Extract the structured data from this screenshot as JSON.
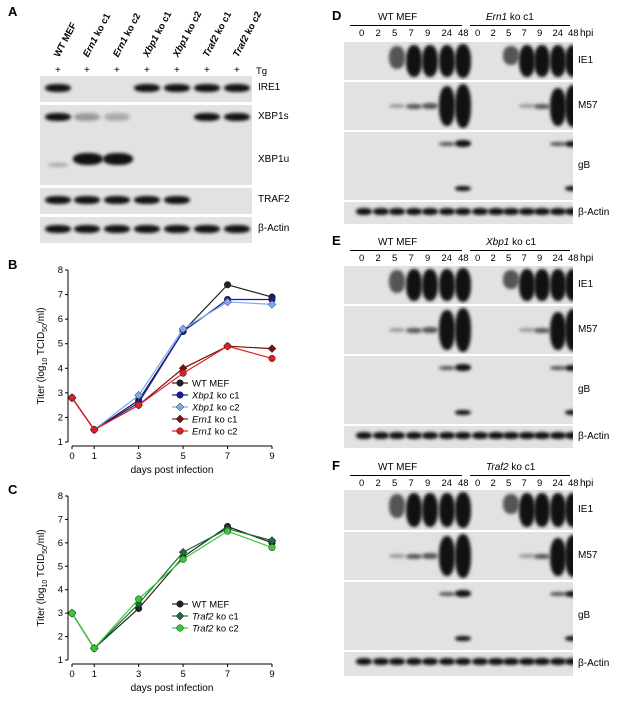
{
  "panelA": {
    "letter": "A",
    "lanes": [
      "WT MEF",
      "Ern1 ko c1",
      "Ern1 ko c2",
      "Xbp1 ko c1",
      "Xbp1 ko c2",
      "Traf2 ko c1",
      "Traf2 ko c2"
    ],
    "lanes_italic_part": [
      "",
      "Ern1",
      "Ern1",
      "Xbp1",
      "Xbp1",
      "Traf2",
      "Traf2"
    ],
    "lanes_plain_part": [
      "WT MEF",
      " ko c1",
      " ko c2",
      " ko c1",
      " ko c2",
      " ko c1",
      " ko c2"
    ],
    "treatment_symbol": "+",
    "treatment": "Tg",
    "rows": [
      "IRE1",
      "XBP1s",
      "XBP1u",
      "TRAF2",
      "β-Actin"
    ]
  },
  "panelB": {
    "letter": "B",
    "chart_data": {
      "type": "line",
      "xlabel": "days post infection",
      "ylabel": "Titer (log10 TCID50/ml)",
      "x": [
        0,
        1,
        3,
        5,
        7,
        9
      ],
      "xticks": [
        "0",
        "1",
        "3",
        "5",
        "7",
        "9"
      ],
      "yticks": [
        "1",
        "2",
        "3",
        "4",
        "5",
        "6",
        "7",
        "8"
      ],
      "ylim": [
        1,
        8
      ],
      "series": [
        {
          "name": "WT MEF",
          "italic": "",
          "plain": "WT MEF",
          "color": "#222222",
          "marker": "circle",
          "values": [
            2.8,
            1.5,
            2.7,
            5.5,
            7.4,
            6.9
          ]
        },
        {
          "name": "Xbp1 ko c1",
          "italic": "Xbp1",
          "plain": " ko c1",
          "color": "#1a1aa8",
          "marker": "circle",
          "values": [
            2.8,
            1.5,
            2.6,
            5.5,
            6.8,
            6.8
          ]
        },
        {
          "name": "Xbp1 ko c2",
          "italic": "Xbp1",
          "plain": " ko c2",
          "color": "#7aa9f0",
          "marker": "diamond",
          "values": [
            2.8,
            1.5,
            2.9,
            5.6,
            6.7,
            6.6
          ]
        },
        {
          "name": "Ern1 ko c1",
          "italic": "Ern1",
          "plain": " ko c1",
          "color": "#7a1010",
          "marker": "diamond",
          "values": [
            2.8,
            1.5,
            2.5,
            4.0,
            4.9,
            4.8
          ]
        },
        {
          "name": "Ern1 ko c2",
          "italic": "Ern1",
          "plain": " ko c2",
          "color": "#e02020",
          "marker": "circle",
          "values": [
            2.8,
            1.5,
            2.5,
            3.8,
            4.9,
            4.4
          ]
        }
      ]
    }
  },
  "panelC": {
    "letter": "C",
    "chart_data": {
      "type": "line",
      "xlabel": "days post infection",
      "ylabel": "Titer (log10 TCID50/ml)",
      "x": [
        0,
        1,
        3,
        5,
        7,
        9
      ],
      "xticks": [
        "0",
        "1",
        "3",
        "5",
        "7",
        "9"
      ],
      "yticks": [
        "1",
        "2",
        "3",
        "4",
        "5",
        "6",
        "7",
        "8"
      ],
      "ylim": [
        1,
        8
      ],
      "series": [
        {
          "name": "WT MEF",
          "italic": "",
          "plain": "WT MEF",
          "color": "#222222",
          "marker": "circle",
          "values": [
            3.0,
            1.5,
            3.2,
            5.4,
            6.7,
            6.0
          ]
        },
        {
          "name": "Traf2 ko c1",
          "italic": "Traf2",
          "plain": " ko c1",
          "color": "#1e6b3c",
          "marker": "diamond",
          "values": [
            3.0,
            1.5,
            3.4,
            5.6,
            6.6,
            6.1
          ]
        },
        {
          "name": "Traf2 ko c2",
          "italic": "Traf2",
          "plain": " ko c2",
          "color": "#33cc33",
          "marker": "circle",
          "values": [
            3.0,
            1.5,
            3.6,
            5.3,
            6.5,
            5.8
          ]
        }
      ]
    }
  },
  "panelD": {
    "letter": "D",
    "group1": "WT MEF",
    "group2_italic": "Ern1",
    "group2_plain": " ko c1",
    "hpi": "hpi",
    "timepoints": [
      "0",
      "2",
      "5",
      "7",
      "9",
      "24",
      "48"
    ],
    "rows": [
      "IE1",
      "M57",
      "gB",
      "β-Actin"
    ]
  },
  "panelE": {
    "letter": "E",
    "group1": "WT MEF",
    "group2_italic": "Xbp1",
    "group2_plain": " ko c1",
    "hpi": "hpi",
    "timepoints": [
      "0",
      "2",
      "5",
      "7",
      "9",
      "24",
      "48"
    ],
    "rows": [
      "IE1",
      "M57",
      "gB",
      "β-Actin"
    ]
  },
  "panelF": {
    "letter": "F",
    "group1": "WT MEF",
    "group2_italic": "Traf2",
    "group2_plain": " ko c1",
    "hpi": "hpi",
    "timepoints": [
      "0",
      "2",
      "5",
      "7",
      "9",
      "24",
      "48"
    ],
    "rows": [
      "IE1",
      "M57",
      "gB",
      "β-Actin"
    ]
  }
}
